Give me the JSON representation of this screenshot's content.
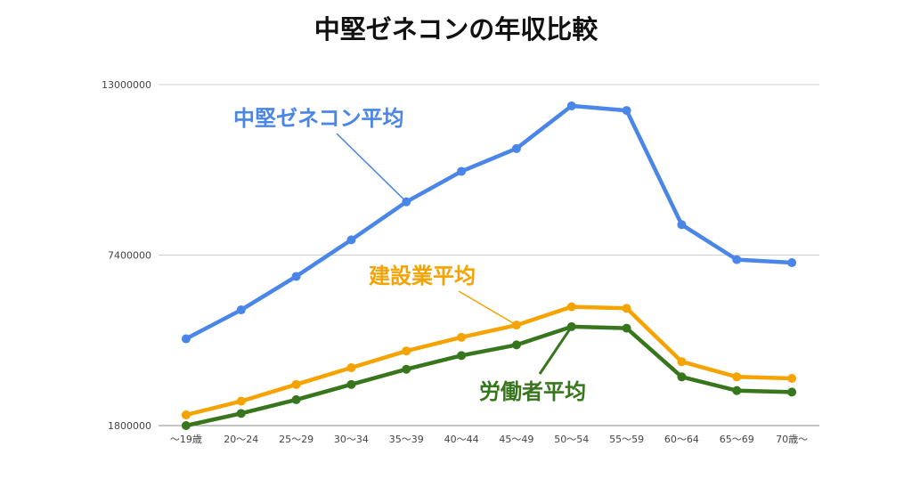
{
  "chart_data": {
    "type": "line",
    "title": "中堅ゼネコンの年収比較",
    "xlabel": "",
    "ylabel": "",
    "categories": [
      "〜19歳",
      "20〜24",
      "25〜29",
      "30〜34",
      "35〜39",
      "40〜44",
      "45〜49",
      "50〜54",
      "55〜59",
      "60〜64",
      "65〜69",
      "70歳〜"
    ],
    "ylim": [
      1800000,
      13000000
    ],
    "yticks": [
      1800000,
      7400000,
      13000000
    ],
    "grid": true,
    "legend": "inline labels",
    "series": [
      {
        "name": "中堅ゼネコン平均",
        "color": "#4a86e8",
        "values": [
          4650000,
          5600000,
          6700000,
          7900000,
          9150000,
          10150000,
          10900000,
          12300000,
          12150000,
          8400000,
          7250000,
          7150000
        ]
      },
      {
        "name": "建設業平均",
        "color": "#f4a300",
        "values": [
          2150000,
          2600000,
          3150000,
          3700000,
          4250000,
          4700000,
          5100000,
          5700000,
          5650000,
          3900000,
          3400000,
          3350000
        ]
      },
      {
        "name": "労働者平均",
        "color": "#38761d",
        "values": [
          1800000,
          2200000,
          2650000,
          3150000,
          3650000,
          4100000,
          4450000,
          5050000,
          5000000,
          3400000,
          2950000,
          2900000
        ]
      }
    ]
  }
}
